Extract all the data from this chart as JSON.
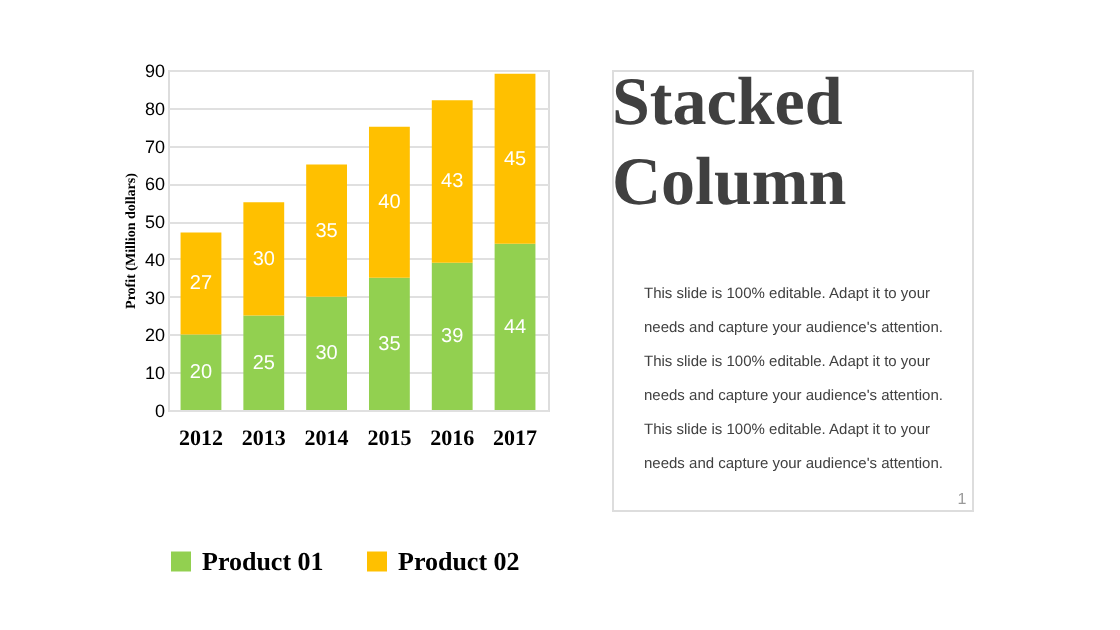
{
  "chart_data": {
    "type": "bar",
    "title": "Stacked Column",
    "ylabel": "Profit (Million dollars)",
    "categories": [
      "2012",
      "2013",
      "2014",
      "2015",
      "2016",
      "2017"
    ],
    "series": [
      {
        "name": "Product 01",
        "color": "#92d050",
        "values": [
          20,
          25,
          30,
          35,
          39,
          44
        ]
      },
      {
        "name": "Product 02",
        "color": "#ffc000",
        "values": [
          27,
          30,
          35,
          40,
          43,
          45
        ]
      }
    ],
    "stacked": true,
    "data_labels": true,
    "ylim": [
      0,
      90
    ],
    "yticks": [
      0,
      10,
      20,
      30,
      40,
      50,
      60,
      70,
      80,
      90
    ],
    "grid": "y",
    "legend": "bottom",
    "annotations": [
      "This slide is 100% editable. Adapt it to your needs and capture your audience's attention.",
      "This slide is 100% editable. Adapt it to your needs and capture your audience's attention.",
      "This slide is 100% editable. Adapt it to your needs and capture your audience's attention.",
      "1"
    ]
  }
}
